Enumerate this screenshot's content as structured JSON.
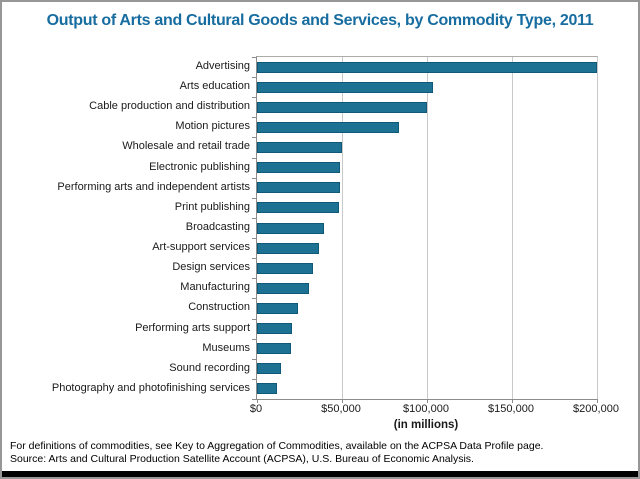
{
  "chart_data": {
    "type": "bar",
    "orientation": "horizontal",
    "title": "Output of Arts and Cultural Goods and Services, by Commodity Type, 2011",
    "categories": [
      "Advertising",
      "Arts education",
      "Cable production and distribution",
      "Motion pictures",
      "Wholesale and retail trade",
      "Electronic publishing",
      "Performing arts and independent artists",
      "Print publishing",
      "Broadcasting",
      "Art-support services",
      "Design services",
      "Manufacturing",
      "Construction",
      "Performing arts support",
      "Museums",
      "Sound recording",
      "Photography and photofinishing services"
    ],
    "values": [
      200000,
      103500,
      100000,
      83500,
      50000,
      49000,
      49000,
      48500,
      39500,
      36500,
      33000,
      30500,
      24000,
      20500,
      20000,
      14000,
      12000
    ],
    "xlabel": "(in millions)",
    "x_ticks": [
      "$0",
      "$50,000",
      "$100,000",
      "$150,000",
      "$200,000"
    ],
    "xlim": [
      0,
      200000
    ],
    "grid": true,
    "legend": "none"
  },
  "footnotes": {
    "line1": "For definitions of commodities, see Key to Aggregation of Commodities, available on the ACPSA Data Profile page.",
    "line2": "Source: Arts and Cultural Production Satellite Account (ACPSA), U.S. Bureau of Economic Analysis."
  },
  "colors": {
    "bar_fill": "#1D7294",
    "bar_border": "#0F5878",
    "title_text": "#176CA0",
    "gridline": "#C9C9C9",
    "axis_line": "#8C8C8C",
    "frame_border": "#979797",
    "bottom_band": "#000000",
    "label_text": "#1a1a1a"
  }
}
